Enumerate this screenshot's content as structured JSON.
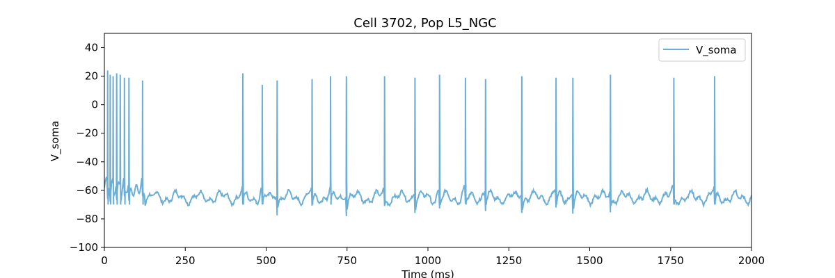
{
  "chart_data": {
    "type": "line",
    "title": "Cell 3702, Pop L5_NGC",
    "xlabel": "Time (ms)",
    "ylabel": "V_soma",
    "xlim": [
      0,
      2000
    ],
    "ylim": [
      -100,
      50
    ],
    "xticks": [
      0,
      250,
      500,
      750,
      1000,
      1250,
      1500,
      1750,
      2000
    ],
    "yticks": [
      -100,
      -80,
      -60,
      -40,
      -20,
      0,
      20,
      40
    ],
    "grid": false,
    "legend_position": "top-right",
    "line_color": "#6baed6",
    "series": [
      {
        "name": "V_soma",
        "rest_potential": -65,
        "spike_times": [
          10,
          18,
          27,
          38,
          49,
          62,
          76,
          118,
          428,
          488,
          534,
          642,
          699,
          748,
          866,
          960,
          1036,
          1116,
          1178,
          1290,
          1396,
          1448,
          1564,
          1760,
          1886
        ],
        "spike_peaks": [
          24,
          21,
          20,
          22,
          21,
          19,
          19,
          17,
          22,
          14,
          17,
          18,
          20,
          20,
          20,
          19,
          21,
          19,
          18,
          20,
          19,
          19,
          21,
          19,
          20
        ]
      }
    ]
  }
}
